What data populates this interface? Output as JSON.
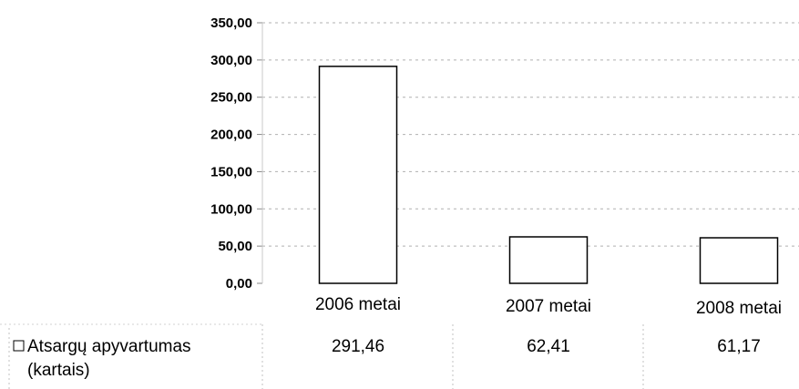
{
  "chart_data": {
    "type": "bar",
    "categories": [
      "2006 metai",
      "2007 metai",
      "2008 metai"
    ],
    "series": [
      {
        "name": "Atsargų apyvartumas (kartais)",
        "values": [
          291.46,
          62.41,
          61.17
        ],
        "value_labels": [
          "291,46",
          "62,41",
          "61,17"
        ]
      }
    ],
    "y_ticks": [
      "0,00",
      "50,00",
      "100,00",
      "150,00",
      "200,00",
      "250,00",
      "300,00",
      "350,00"
    ],
    "ylim": [
      0,
      350
    ],
    "grid": true,
    "legend": "data-table",
    "legend_lines": [
      "Atsargų apyvartumas",
      "(kartais)"
    ],
    "colors": {
      "bar_fill": "#ffffff",
      "bar_stroke": "#000000",
      "grid": "#b0b0b0"
    }
  }
}
